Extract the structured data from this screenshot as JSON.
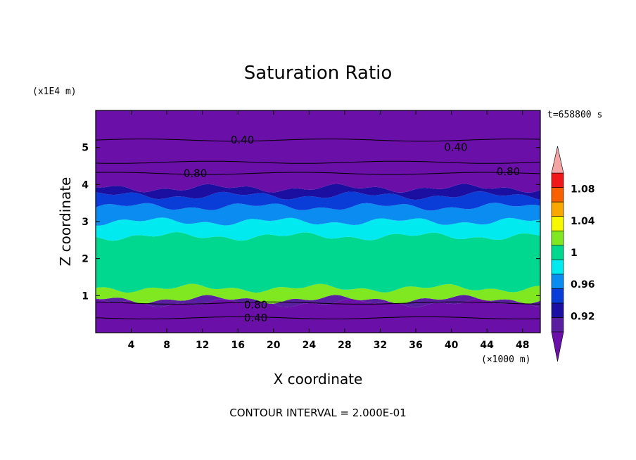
{
  "chart_data": {
    "type": "heatmap",
    "title": "Saturation Ratio",
    "xlabel": "X coordinate",
    "ylabel": "Z coordinate",
    "x_unit": "(×1000 m)",
    "y_unit": "(x1E4 m)",
    "time_label": "t=658800 s",
    "footer": "CONTOUR INTERVAL = 2.000E-01",
    "xlim": [
      0,
      50
    ],
    "ylim": [
      0,
      6
    ],
    "x_ticks": [
      4,
      8,
      12,
      16,
      20,
      24,
      28,
      32,
      36,
      40,
      44,
      48
    ],
    "y_ticks": [
      1,
      2,
      3,
      4,
      5
    ],
    "colorbar": {
      "tick_labels": [
        "0.92",
        "0.96",
        "1",
        "1.04",
        "1.08"
      ],
      "tick_values": [
        0.92,
        0.96,
        1.0,
        1.04,
        1.08
      ],
      "levels": [
        0.9,
        0.92,
        0.94,
        0.96,
        0.98,
        1.0,
        1.02,
        1.04,
        1.06,
        1.08,
        1.1
      ],
      "colors": [
        "#5a1fa0",
        "#1a0fa0",
        "#0a3cd8",
        "#0a8cf0",
        "#00eaf0",
        "#00d890",
        "#80e820",
        "#f8f800",
        "#f8a800",
        "#f86000",
        "#f01818"
      ],
      "under_color": "#6a0fa8",
      "over_color": "#f4a6a6",
      "extend": "both"
    },
    "contour_labels": [
      {
        "text": "0.40",
        "x": 16.5,
        "y": 5.2
      },
      {
        "text": "0.40",
        "x": 40.5,
        "y": 5.0
      },
      {
        "text": "0.80",
        "x": 11.2,
        "y": 4.3
      },
      {
        "text": "0.80",
        "x": 46.4,
        "y": 4.35
      },
      {
        "text": "0.80",
        "x": 18.0,
        "y": 0.75
      },
      {
        "text": "0.40",
        "x": 18.0,
        "y": 0.4
      }
    ],
    "bands": [
      {
        "z0": 0.0,
        "z1": 0.8,
        "level": "under"
      },
      {
        "z0": 0.8,
        "z1": 0.9,
        "level": 0
      },
      {
        "z0": 0.9,
        "z1": 1.2,
        "level": 6
      },
      {
        "z0": 1.2,
        "z1": 2.6,
        "level": 5
      },
      {
        "z0": 2.6,
        "z1": 3.0,
        "level": 4
      },
      {
        "z0": 3.0,
        "z1": 3.4,
        "level": 3
      },
      {
        "z0": 3.4,
        "z1": 3.7,
        "level": 2
      },
      {
        "z0": 3.7,
        "z1": 3.9,
        "level": 1
      },
      {
        "z0": 3.9,
        "z1": 6.0,
        "level": "under"
      }
    ]
  }
}
